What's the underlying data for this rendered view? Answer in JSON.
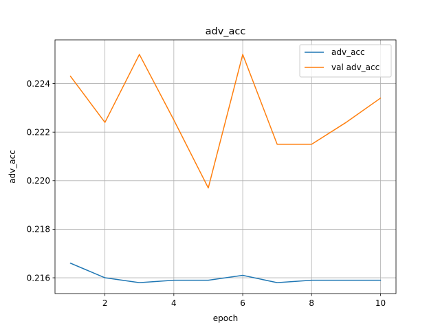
{
  "chart_data": {
    "type": "line",
    "title": "adv_acc",
    "xlabel": "epoch",
    "ylabel": "adv_acc",
    "x": [
      1,
      2,
      3,
      4,
      5,
      6,
      7,
      8,
      9,
      10
    ],
    "xlim": [
      0.55,
      10.45
    ],
    "ylim": [
      0.21535,
      0.2258
    ],
    "xticks": [
      2,
      4,
      6,
      8,
      10
    ],
    "xtick_labels": [
      "2",
      "4",
      "6",
      "8",
      "10"
    ],
    "yticks": [
      0.216,
      0.218,
      0.22,
      0.222,
      0.224
    ],
    "ytick_labels": [
      "0.216",
      "0.218",
      "0.220",
      "0.222",
      "0.224"
    ],
    "grid": true,
    "legend_position": "top-right",
    "series": [
      {
        "name": "adv_acc",
        "color": "#1f77b4",
        "values": [
          0.2166,
          0.216,
          0.2158,
          0.2159,
          0.2159,
          0.2161,
          0.2158,
          0.2159,
          0.2159,
          0.2159
        ]
      },
      {
        "name": "val adv_acc",
        "color": "#ff7f0e",
        "values": [
          0.2243,
          0.2224,
          0.2252,
          0.2225,
          0.2197,
          0.2252,
          0.2215,
          0.2215,
          0.2224,
          0.2234
        ]
      }
    ]
  }
}
